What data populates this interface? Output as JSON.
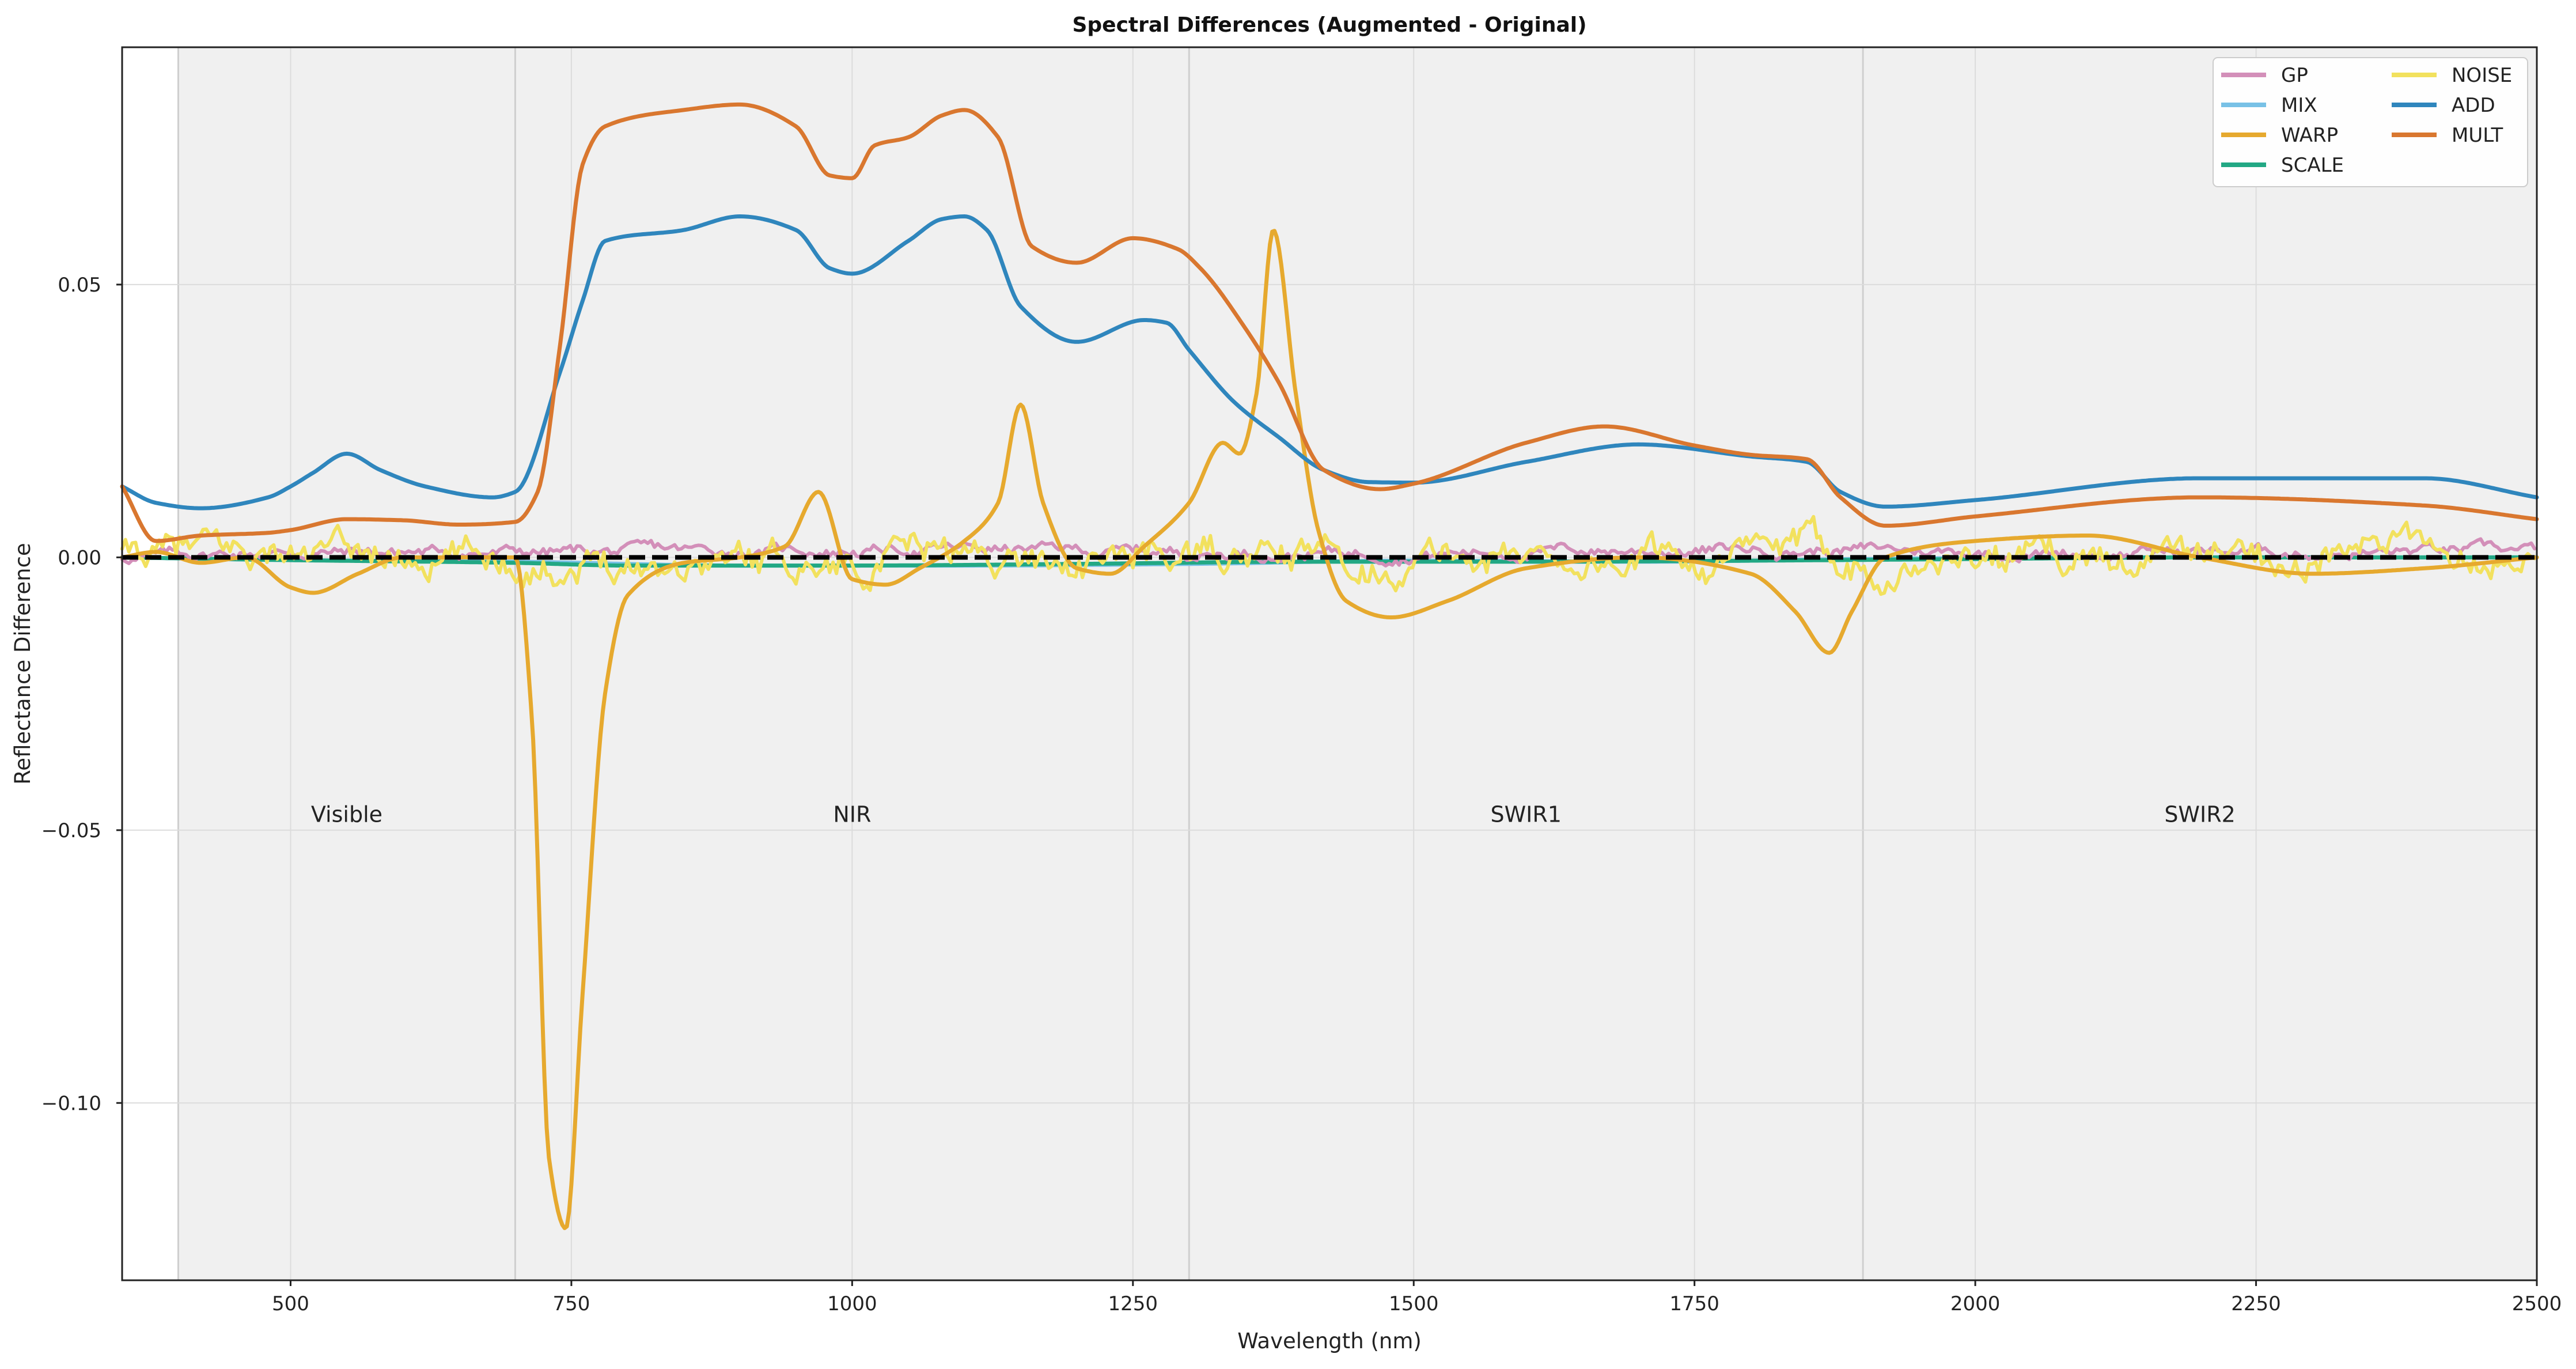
{
  "chart_data": {
    "type": "line",
    "title": "Spectral Differences (Augmented - Original)",
    "xlabel": "Wavelength (nm)",
    "ylabel": "Reflectance Difference",
    "xlim": [
      350,
      2500
    ],
    "ylim": [
      -0.1325,
      0.0935
    ],
    "x_ticks": [
      500,
      750,
      1000,
      1250,
      1500,
      1750,
      2000,
      2250,
      2500
    ],
    "x_tick_labels": [
      "500",
      "750",
      "1000",
      "1250",
      "1500",
      "1750",
      "2000",
      "2250",
      "2500"
    ],
    "y_ticks": [
      0.05,
      0.0,
      -0.05,
      -0.1
    ],
    "y_tick_labels": [
      "0.05",
      "0.00",
      "−0.05",
      "−0.10"
    ],
    "grid": true,
    "background_color": "#f0f0f0",
    "legend_position": "top-right",
    "legend_columns": 2,
    "regions": [
      {
        "label": "Visible",
        "start": 400,
        "end": 700,
        "label_x": 550,
        "label_y": -0.0485
      },
      {
        "label": "NIR",
        "start": 700,
        "end": 1300,
        "label_x": 1000,
        "label_y": -0.0485
      },
      {
        "label": "SWIR1",
        "start": 1300,
        "end": 1900,
        "label_x": 1600,
        "label_y": -0.0485
      },
      {
        "label": "SWIR2",
        "start": 1900,
        "end": 2500,
        "label_x": 2200,
        "label_y": -0.0485
      }
    ],
    "zero_line": {
      "y": 0,
      "color": "#000000",
      "style": "dashed"
    },
    "series": [
      {
        "name": "GP",
        "color": "#d38fb9",
        "style": "noisy",
        "x": [
          350,
          500,
          800,
          1100,
          1300,
          1500,
          1800,
          2100,
          2500
        ],
        "y": [
          0,
          0.001,
          0.001,
          0.0015,
          0.001,
          0.001,
          0.0015,
          0.001,
          0.001
        ],
        "noise_amp": 0.0015
      },
      {
        "name": "MIX",
        "color": "#78c1e6",
        "style": "smooth",
        "x": [
          350,
          500,
          700,
          900,
          1100,
          1300,
          1500,
          1700,
          1900,
          2100,
          2300,
          2500
        ],
        "y": [
          0,
          -0.0005,
          -0.0008,
          -0.0015,
          -0.0015,
          -0.0012,
          -0.0006,
          -0.0008,
          -0.0003,
          0.0,
          0.0,
          0.0
        ]
      },
      {
        "name": "WARP",
        "color": "#e6a92e",
        "style": "smooth",
        "x": [
          350,
          380,
          420,
          460,
          500,
          520,
          560,
          600,
          650,
          700,
          715,
          730,
          745,
          760,
          780,
          800,
          850,
          900,
          940,
          970,
          1000,
          1030,
          1060,
          1100,
          1130,
          1150,
          1170,
          1200,
          1230,
          1260,
          1300,
          1330,
          1345,
          1360,
          1375,
          1395,
          1415,
          1440,
          1480,
          1530,
          1600,
          1700,
          1800,
          1840,
          1870,
          1890,
          1920,
          2000,
          2100,
          2200,
          2300,
          2400,
          2500
        ],
        "y": [
          0.0,
          0.001,
          -0.001,
          0.0,
          -0.0055,
          -0.0065,
          -0.003,
          0.0,
          0.0,
          0.0,
          -0.03,
          -0.11,
          -0.123,
          -0.08,
          -0.025,
          -0.007,
          -0.001,
          0.0,
          0.002,
          0.012,
          -0.004,
          -0.005,
          -0.002,
          0.003,
          0.01,
          0.028,
          0.01,
          -0.002,
          -0.003,
          0.002,
          0.01,
          0.021,
          0.019,
          0.03,
          0.06,
          0.03,
          0.005,
          -0.008,
          -0.011,
          -0.008,
          -0.002,
          0.0,
          -0.003,
          -0.01,
          -0.0175,
          -0.01,
          0.0,
          0.003,
          0.004,
          0.0,
          -0.003,
          -0.002,
          0.0
        ]
      },
      {
        "name": "SCALE",
        "color": "#22a884",
        "style": "smooth",
        "x": [
          350,
          500,
          700,
          800,
          1000,
          1200,
          1400,
          1600,
          1800,
          2000,
          2200,
          2500
        ],
        "y": [
          0,
          -0.0005,
          -0.001,
          -0.0015,
          -0.0015,
          -0.0012,
          -0.0008,
          -0.0008,
          -0.0006,
          -0.0003,
          0.0,
          0.0
        ]
      },
      {
        "name": "NOISE",
        "color": "#f2e15e",
        "style": "noisy",
        "x": [
          350,
          500,
          800,
          1100,
          1300,
          1500,
          1800,
          2100,
          2500
        ],
        "y": [
          0,
          0,
          0,
          0,
          0,
          0,
          0,
          0,
          0.002
        ],
        "noise_amp": 0.0045
      },
      {
        "name": "ADD",
        "color": "#2f86bd",
        "style": "smooth",
        "x": [
          350,
          380,
          420,
          480,
          500,
          520,
          550,
          580,
          620,
          680,
          700,
          740,
          760,
          780,
          850,
          900,
          950,
          980,
          1000,
          1050,
          1080,
          1100,
          1120,
          1150,
          1200,
          1260,
          1280,
          1300,
          1340,
          1380,
          1420,
          1460,
          1500,
          1600,
          1700,
          1800,
          1850,
          1880,
          1920,
          2000,
          2200,
          2400,
          2500
        ],
        "y": [
          0.013,
          0.01,
          0.009,
          0.011,
          0.013,
          0.0155,
          0.019,
          0.016,
          0.013,
          0.011,
          0.012,
          0.034,
          0.047,
          0.058,
          0.06,
          0.0625,
          0.06,
          0.053,
          0.052,
          0.058,
          0.062,
          0.0625,
          0.06,
          0.046,
          0.0395,
          0.0435,
          0.043,
          0.038,
          0.0285,
          0.022,
          0.016,
          0.0138,
          0.0137,
          0.0175,
          0.0207,
          0.0185,
          0.0175,
          0.012,
          0.0093,
          0.0105,
          0.0145,
          0.0145,
          0.011
        ]
      },
      {
        "name": "MULT",
        "color": "#d9772f",
        "style": "smooth",
        "x": [
          350,
          380,
          420,
          480,
          500,
          550,
          600,
          650,
          700,
          720,
          740,
          760,
          780,
          850,
          900,
          950,
          980,
          1000,
          1020,
          1050,
          1080,
          1100,
          1130,
          1160,
          1200,
          1250,
          1290,
          1310,
          1350,
          1380,
          1420,
          1470,
          1500,
          1600,
          1670,
          1750,
          1800,
          1850,
          1880,
          1920,
          2000,
          2200,
          2400,
          2500
        ],
        "y": [
          0.013,
          0.003,
          0.004,
          0.0045,
          0.005,
          0.007,
          0.0068,
          0.006,
          0.0065,
          0.012,
          0.039,
          0.072,
          0.079,
          0.082,
          0.083,
          0.079,
          0.07,
          0.0695,
          0.0755,
          0.077,
          0.081,
          0.082,
          0.077,
          0.057,
          0.054,
          0.0585,
          0.0565,
          0.053,
          0.042,
          0.032,
          0.016,
          0.0125,
          0.0135,
          0.021,
          0.024,
          0.0205,
          0.0188,
          0.018,
          0.011,
          0.0058,
          0.0075,
          0.011,
          0.0095,
          0.007
        ]
      }
    ]
  }
}
